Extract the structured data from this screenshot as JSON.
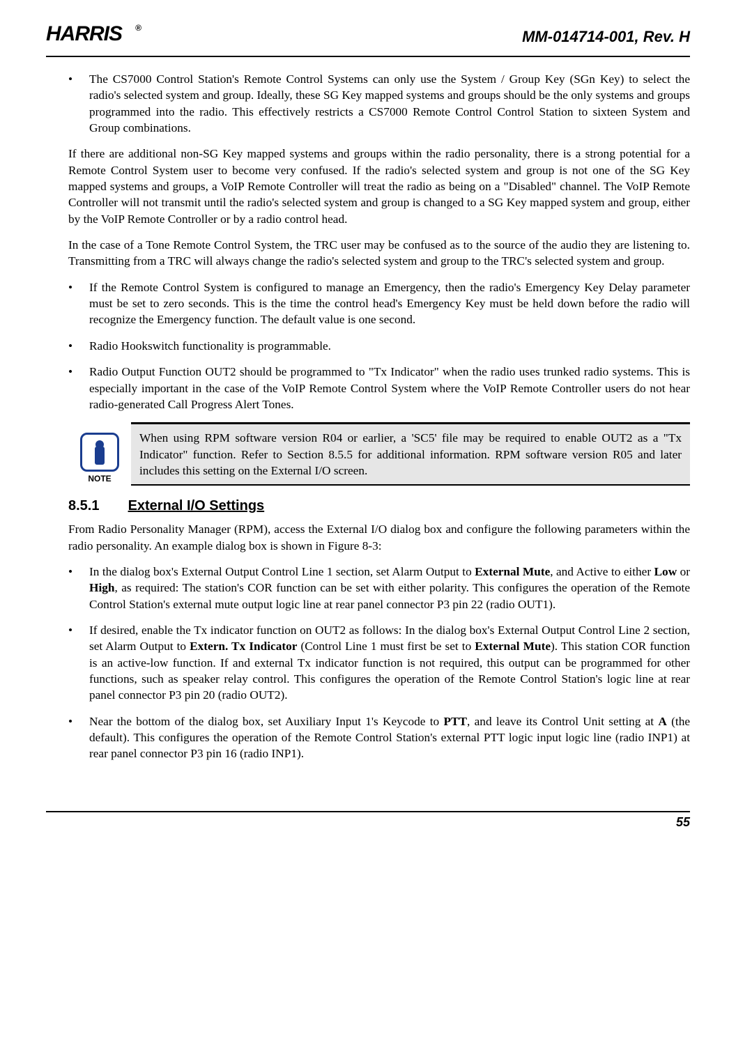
{
  "header": {
    "logo_text": "ARRIS",
    "logo_suffix": "®",
    "doc_id": "MM-014714-001, Rev. H"
  },
  "content": {
    "bullet1": "The CS7000 Control Station's Remote Control Systems can only use the System / Group Key (SGn Key) to select the radio's selected system and group.  Ideally, these SG Key mapped systems and groups should be the only systems and groups programmed into the radio.  This effectively restricts a CS7000 Remote Control Control Station to sixteen System and Group combinations.",
    "para1": "If there are additional non-SG Key mapped systems and groups within the radio personality, there is a strong potential for a Remote Control System user to become very confused.  If the radio's selected system and group is not one of the SG Key mapped systems and groups, a VoIP Remote Controller will treat the radio as being on a \"Disabled\" channel.  The VoIP Remote Controller will not transmit until the radio's selected system and group is changed to a SG Key mapped system and group, either by the VoIP Remote Controller or by a radio control head.",
    "para2": "In the case of a Tone Remote Control System, the TRC user may be confused as to the source of the audio they are listening to.  Transmitting from a TRC will always change the radio's selected system and group to the TRC's selected system and group.",
    "bullet2": "If the Remote Control System is configured to manage an Emergency, then the radio's Emergency Key Delay parameter must be set to zero seconds. This is the time the control head's Emergency Key must be held down before the radio will recognize the Emergency function. The default value is one second.",
    "bullet3": "Radio Hookswitch functionality is programmable.",
    "bullet4": "Radio Output Function OUT2 should be programmed to \"Tx Indicator\" when the radio uses trunked radio systems.  This is especially important in the case of the VoIP Remote Control System where the VoIP Remote Controller users do not hear radio-generated Call Progress Alert Tones.",
    "note_label": "NOTE",
    "note_text": "When using RPM software version R04 or earlier, a 'SC5' file may be required to enable OUT2 as a \"Tx Indicator\" function.  Refer to Section 8.5.5 for additional information.  RPM software version R05 and later includes this setting on the External I/O screen.",
    "section_num": "8.5.1",
    "section_title": "External I/O Settings",
    "para3": "From Radio Personality Manager (RPM), access the External I/O dialog box and configure the following parameters within the radio personality. An example dialog box is shown in Figure 8-3:",
    "bullet5_pre": "In the dialog box's External Output Control Line 1 section, set Alarm Output to ",
    "bullet5_b1": "External Mute",
    "bullet5_mid1": ", and Active to either ",
    "bullet5_b2": "Low",
    "bullet5_mid2": " or ",
    "bullet5_b3": "High",
    "bullet5_post": ", as required: The station's COR function can be set with either polarity. This configures the operation of the Remote Control Station's external mute output logic line at rear panel connector P3 pin 22 (radio OUT1).",
    "bullet6_pre": "If desired, enable the Tx indicator function on OUT2 as follows:  In the dialog box's External Output Control Line 2 section, set Alarm Output to ",
    "bullet6_b1": "Extern. Tx Indicator",
    "bullet6_mid1": " (Control Line 1 must first be set to ",
    "bullet6_b2": "External Mute",
    "bullet6_post": "). This station COR function is an active-low function. If and external Tx indicator function is not required, this output can be programmed for other functions, such as speaker relay control. This configures the operation of the Remote Control Station's logic line at rear panel connector P3 pin 20 (radio OUT2).",
    "bullet7_pre": "Near the bottom of the dialog box, set Auxiliary Input 1's Keycode to ",
    "bullet7_b1": "PTT",
    "bullet7_mid1": ", and leave its Control Unit setting at ",
    "bullet7_b2": "A",
    "bullet7_post": " (the default). This configures the operation of the Remote Control Station's external PTT logic input logic line (radio INP1) at rear panel connector P3 pin 16 (radio INP1)."
  },
  "footer": {
    "page_num": "55"
  },
  "colors": {
    "note_border": "#1a3d8f",
    "note_bg": "#e6e6e6",
    "text": "#000000",
    "bg": "#ffffff"
  }
}
